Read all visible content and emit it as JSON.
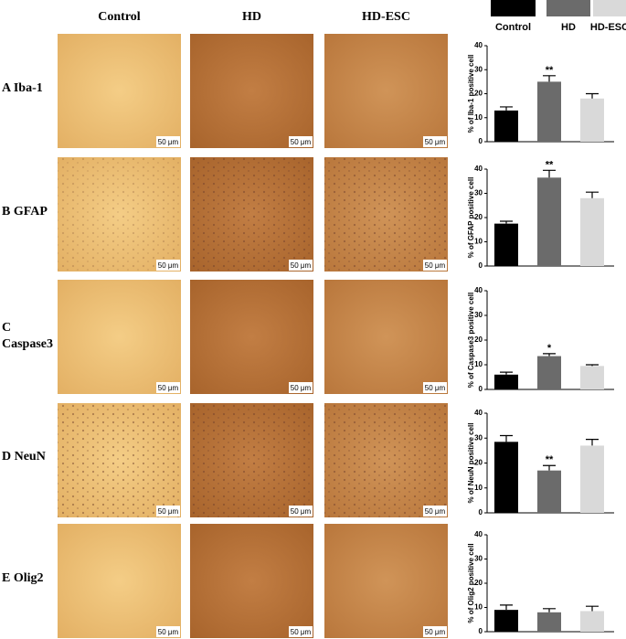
{
  "figure": {
    "columns": [
      "Control",
      "HD",
      "HD-ESC"
    ],
    "rows": [
      "A  Iba-1",
      "B  GFAP",
      "C",
      "Caspase3",
      "D  NeuN",
      "E  Olig2"
    ],
    "scale_bar": "50 μm",
    "legend": [
      {
        "name": "Control",
        "color": "#000000"
      },
      {
        "name": "HD",
        "color": "#6b6b6b"
      },
      {
        "name": "HD-ESC",
        "color": "#d9d9d9"
      }
    ]
  },
  "chart_data": [
    {
      "type": "bar",
      "y_label": "% of Iba-1 positive cell",
      "values": [
        13,
        25,
        18
      ],
      "errors": [
        1.5,
        2.5,
        2
      ],
      "annotations": [
        null,
        "**",
        null
      ],
      "ylim": [
        0,
        40
      ],
      "yticks": [
        0,
        10,
        20,
        30,
        40
      ]
    },
    {
      "type": "bar",
      "y_label": "% of GFAP positive cell",
      "values": [
        17.5,
        36.5,
        28
      ],
      "errors": [
        1,
        3,
        2.5
      ],
      "annotations": [
        null,
        "**",
        null
      ],
      "ylim": [
        0,
        40
      ],
      "yticks": [
        0,
        10,
        20,
        30,
        40
      ]
    },
    {
      "type": "bar",
      "y_label": "% of Caspase3 positive cell",
      "values": [
        6,
        13.5,
        9.5
      ],
      "errors": [
        1,
        1,
        0.5
      ],
      "annotations": [
        null,
        "*",
        null
      ],
      "ylim": [
        0,
        40
      ],
      "yticks": [
        0,
        10,
        20,
        30,
        40
      ]
    },
    {
      "type": "bar",
      "y_label": "% of NeuN positive cell",
      "values": [
        28.5,
        17,
        27
      ],
      "errors": [
        2.5,
        2,
        2.5
      ],
      "annotations": [
        null,
        "**",
        null
      ],
      "ylim": [
        0,
        40
      ],
      "yticks": [
        0,
        10,
        20,
        30,
        40
      ]
    },
    {
      "type": "bar",
      "y_label": "% of Olig2 positive cell",
      "values": [
        9,
        8,
        8.5
      ],
      "errors": [
        2,
        1.5,
        2
      ],
      "annotations": [
        null,
        null,
        null
      ],
      "ylim": [
        0,
        40
      ],
      "yticks": [
        0,
        10,
        20,
        30,
        40
      ]
    }
  ]
}
